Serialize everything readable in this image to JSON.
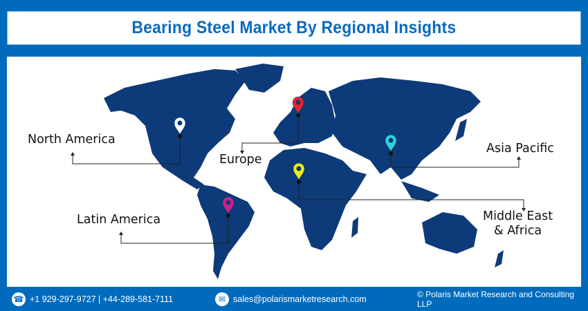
{
  "header": {
    "title": "Bearing Steel Market By Regional Insights"
  },
  "map": {
    "land_color": "#0d3a78",
    "regions": [
      {
        "label": "North America",
        "pin_color": "#ffffff"
      },
      {
        "label": "Europe",
        "pin_color": "#e8252a"
      },
      {
        "label": "Asia Pacific",
        "pin_color": "#2fd3d8"
      },
      {
        "label": "Middle East\n& Africa",
        "label_line1": "Middle East",
        "label_line2": "& Africa",
        "pin_color": "#f2ea1d"
      },
      {
        "label": "Latin America",
        "pin_color": "#d21f8c"
      }
    ]
  },
  "footer": {
    "phone": "+1 929-297-9727 | +44-289-581-7111",
    "phone_icon": "phone-icon",
    "email": "sales@polarismarketresearch.com",
    "email_icon": "mail-icon",
    "copyright": "© Polaris Market Research and Consulting LLP"
  },
  "colors": {
    "background": "#006bbd",
    "title": "#0a6abf"
  }
}
